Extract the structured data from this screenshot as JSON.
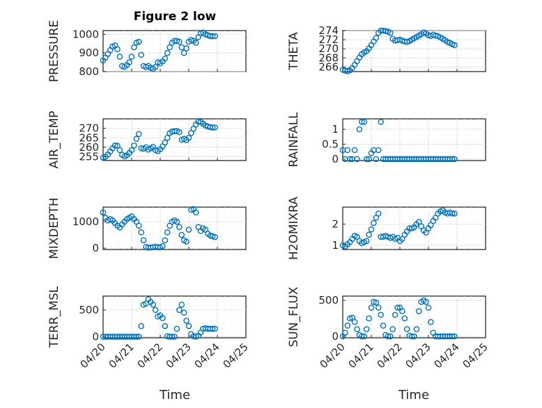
{
  "figure": {
    "title": "Figure 2 low",
    "xlabel": "Time"
  },
  "colors": {
    "marker": "#0072BD",
    "axes": "#262626",
    "grid": "#dfdfdf"
  },
  "chart_data": [
    {
      "type": "scatter",
      "panel": "PRESSURE",
      "ylabel": "PRESSURE",
      "ylim": [
        800,
        1020
      ],
      "yticks": [
        "800",
        "900",
        "1000"
      ],
      "ytick_values": [
        800,
        900,
        1000
      ],
      "x": [
        "04/20 00:00",
        "04/20 02:00",
        "04/20 04:00",
        "04/20 06:00",
        "04/20 08:00",
        "04/20 10:00",
        "04/20 12:00",
        "04/20 14:00",
        "04/20 16:00",
        "04/20 18:00",
        "04/20 20:00",
        "04/20 22:00",
        "04/21 00:00",
        "04/21 02:00",
        "04/21 04:00",
        "04/21 06:00",
        "04/21 08:00",
        "04/21 10:00",
        "04/21 12:00",
        "04/21 14:00",
        "04/21 16:00",
        "04/21 18:00",
        "04/21 20:00",
        "04/21 22:00",
        "04/22 00:00",
        "04/22 02:00",
        "04/22 04:00",
        "04/22 06:00",
        "04/22 08:00",
        "04/22 10:00",
        "04/22 12:00",
        "04/22 14:00",
        "04/22 16:00",
        "04/22 18:00",
        "04/22 20:00",
        "04/22 22:00",
        "04/23 00:00",
        "04/23 02:00",
        "04/23 04:00",
        "04/23 06:00",
        "04/23 08:00",
        "04/23 10:00",
        "04/23 12:00",
        "04/23 14:00",
        "04/23 16:00",
        "04/23 18:00",
        "04/23 20:00",
        "04/23 22:00"
      ],
      "values": [
        860,
        875,
        895,
        915,
        935,
        940,
        920,
        880,
        830,
        825,
        835,
        850,
        880,
        930,
        955,
        960,
        890,
        830,
        825,
        830,
        820,
        815,
        825,
        850,
        845,
        855,
        870,
        900,
        930,
        955,
        965,
        965,
        960,
        930,
        900,
        925,
        960,
        970,
        965,
        955,
        985,
        1005,
        1010,
        1000,
        995,
        990,
        990,
        990
      ]
    },
    {
      "type": "scatter",
      "panel": "THETA",
      "ylabel": "THETA",
      "ylim": [
        265,
        274
      ],
      "yticks": [
        "266",
        "268",
        "270",
        "272",
        "274"
      ],
      "ytick_values": [
        266,
        268,
        270,
        272,
        274
      ],
      "x": [
        "04/20 00:00",
        "04/20 02:00",
        "04/20 04:00",
        "04/20 06:00",
        "04/20 08:00",
        "04/20 10:00",
        "04/20 12:00",
        "04/20 14:00",
        "04/20 16:00",
        "04/20 18:00",
        "04/20 20:00",
        "04/20 22:00",
        "04/21 00:00",
        "04/21 02:00",
        "04/21 04:00",
        "04/21 06:00",
        "04/21 08:00",
        "04/21 10:00",
        "04/21 12:00",
        "04/21 14:00",
        "04/21 16:00",
        "04/21 18:00",
        "04/21 20:00",
        "04/21 22:00",
        "04/22 00:00",
        "04/22 02:00",
        "04/22 04:00",
        "04/22 06:00",
        "04/22 08:00",
        "04/22 10:00",
        "04/22 12:00",
        "04/22 14:00",
        "04/22 16:00",
        "04/22 18:00",
        "04/22 20:00",
        "04/22 22:00",
        "04/23 00:00",
        "04/23 02:00",
        "04/23 04:00",
        "04/23 06:00",
        "04/23 08:00",
        "04/23 10:00",
        "04/23 12:00",
        "04/23 14:00",
        "04/23 16:00",
        "04/23 18:00",
        "04/23 20:00",
        "04/23 22:00"
      ],
      "values": [
        265.4,
        265.2,
        265.1,
        265.3,
        265.8,
        266.5,
        267.3,
        268.1,
        268.8,
        269.2,
        269.5,
        270.1,
        270.8,
        271.6,
        272.4,
        273.5,
        274.0,
        274.0,
        273.9,
        273.8,
        273.5,
        272.2,
        271.8,
        271.9,
        272.0,
        271.8,
        271.6,
        271.5,
        271.7,
        272.0,
        272.3,
        272.6,
        272.9,
        273.2,
        273.6,
        273.4,
        273.0,
        272.8,
        273.1,
        272.9,
        272.8,
        272.5,
        272.2,
        271.9,
        271.5,
        271.3,
        271.0,
        270.8
      ]
    },
    {
      "type": "scatter",
      "panel": "AIR_TEMP",
      "ylabel": "AIR_TEMP",
      "ylim": [
        253,
        275
      ],
      "yticks": [
        "255",
        "260",
        "265",
        "270"
      ],
      "ytick_values": [
        255,
        260,
        265,
        270
      ],
      "x": [
        "04/20 00:00",
        "04/20 02:00",
        "04/20 04:00",
        "04/20 06:00",
        "04/20 08:00",
        "04/20 10:00",
        "04/20 12:00",
        "04/20 14:00",
        "04/20 16:00",
        "04/20 18:00",
        "04/20 20:00",
        "04/20 22:00",
        "04/21 00:00",
        "04/21 02:00",
        "04/21 04:00",
        "04/21 06:00",
        "04/21 08:00",
        "04/21 10:00",
        "04/21 12:00",
        "04/21 14:00",
        "04/21 16:00",
        "04/21 18:00",
        "04/21 20:00",
        "04/21 22:00",
        "04/22 00:00",
        "04/22 02:00",
        "04/22 04:00",
        "04/22 06:00",
        "04/22 08:00",
        "04/22 10:00",
        "04/22 12:00",
        "04/22 14:00",
        "04/22 16:00",
        "04/22 18:00",
        "04/22 20:00",
        "04/22 22:00",
        "04/23 00:00",
        "04/23 02:00",
        "04/23 04:00",
        "04/23 06:00",
        "04/23 08:00",
        "04/23 10:00",
        "04/23 12:00",
        "04/23 14:00",
        "04/23 16:00",
        "04/23 18:00",
        "04/23 20:00",
        "04/23 22:00"
      ],
      "values": [
        254.5,
        255.0,
        256.2,
        257.8,
        259.5,
        261.0,
        260.8,
        258.5,
        256.0,
        255.2,
        255.8,
        257.0,
        258.5,
        261.0,
        264.5,
        267.0,
        259.5,
        259.2,
        260.0,
        258.8,
        259.5,
        260.2,
        258.5,
        258.0,
        259.0,
        260.5,
        262.5,
        265.0,
        267.5,
        268.3,
        268.5,
        268.6,
        268.0,
        264.0,
        264.5,
        263.8,
        265.0,
        267.5,
        269.8,
        272.0,
        273.5,
        273.4,
        272.5,
        271.5,
        271.0,
        270.6,
        270.4,
        270.5
      ]
    },
    {
      "type": "scatter",
      "panel": "RAINFALL",
      "ylabel": "RAINFALL",
      "ylim": [
        -0.05,
        1.35
      ],
      "yticks": [
        "0",
        "0.5",
        "1"
      ],
      "ytick_values": [
        0,
        0.5,
        1
      ],
      "x": [
        "04/20 00:00",
        "04/20 02:00",
        "04/20 04:00",
        "04/20 06:00",
        "04/20 08:00",
        "04/20 10:00",
        "04/20 12:00",
        "04/20 14:00",
        "04/20 16:00",
        "04/20 18:00",
        "04/20 20:00",
        "04/20 22:00",
        "04/21 00:00",
        "04/21 02:00",
        "04/21 04:00",
        "04/21 06:00",
        "04/21 08:00",
        "04/21 10:00",
        "04/21 12:00",
        "04/21 14:00",
        "04/21 16:00",
        "04/21 18:00",
        "04/21 20:00",
        "04/21 22:00",
        "04/22 00:00",
        "04/22 02:00",
        "04/22 04:00",
        "04/22 06:00",
        "04/22 08:00",
        "04/22 10:00",
        "04/22 12:00",
        "04/22 14:00",
        "04/22 16:00",
        "04/22 18:00",
        "04/22 20:00",
        "04/22 22:00",
        "04/23 00:00",
        "04/23 02:00",
        "04/23 04:00",
        "04/23 06:00",
        "04/23 08:00",
        "04/23 10:00",
        "04/23 12:00",
        "04/23 14:00",
        "04/23 16:00",
        "04/23 18:00",
        "04/23 20:00",
        "04/23 22:00"
      ],
      "values": [
        0.3,
        0.0,
        0.3,
        0.0,
        0.0,
        0.3,
        0.0,
        1.0,
        1.25,
        1.25,
        0.0,
        0.0,
        0.2,
        0.3,
        0.0,
        0.3,
        1.25,
        0.0,
        0.0,
        0.0,
        0.0,
        0.0,
        0.0,
        0.0,
        0.0,
        0.0,
        0.0,
        0.0,
        0.0,
        0.0,
        0.0,
        0.0,
        0.0,
        0.0,
        0.0,
        0.0,
        0.0,
        0.0,
        0.0,
        0.0,
        0.0,
        0.0,
        0.0,
        0.0,
        0.0,
        0.0,
        0.0,
        0.0
      ]
    },
    {
      "type": "scatter",
      "panel": "MIXDEPTH",
      "ylabel": "MIXDEPTH",
      "ylim": [
        -50,
        1550
      ],
      "yticks": [
        "0",
        "1000"
      ],
      "ytick_values": [
        0,
        1000
      ],
      "x": [
        "04/20 00:00",
        "04/20 02:00",
        "04/20 04:00",
        "04/20 06:00",
        "04/20 08:00",
        "04/20 10:00",
        "04/20 12:00",
        "04/20 14:00",
        "04/20 16:00",
        "04/20 18:00",
        "04/20 20:00",
        "04/20 22:00",
        "04/21 00:00",
        "04/21 02:00",
        "04/21 04:00",
        "04/21 06:00",
        "04/21 08:00",
        "04/21 10:00",
        "04/21 12:00",
        "04/21 14:00",
        "04/21 16:00",
        "04/21 18:00",
        "04/21 20:00",
        "04/21 22:00",
        "04/22 00:00",
        "04/22 02:00",
        "04/22 04:00",
        "04/22 06:00",
        "04/22 08:00",
        "04/22 10:00",
        "04/22 12:00",
        "04/22 14:00",
        "04/22 16:00",
        "04/22 18:00",
        "04/22 20:00",
        "04/22 22:00",
        "04/23 00:00",
        "04/23 02:00",
        "04/23 04:00",
        "04/23 06:00",
        "04/23 08:00",
        "04/23 10:00",
        "04/23 12:00",
        "04/23 14:00",
        "04/23 16:00",
        "04/23 18:00",
        "04/23 20:00",
        "04/23 22:00"
      ],
      "values": [
        1350,
        1150,
        1050,
        1100,
        1050,
        950,
        850,
        780,
        900,
        1000,
        1100,
        1150,
        1200,
        1100,
        1000,
        850,
        600,
        300,
        50,
        20,
        30,
        40,
        60,
        40,
        30,
        80,
        300,
        600,
        850,
        1000,
        1050,
        1000,
        800,
        500,
        300,
        250,
        700,
        1450,
        1480,
        1350,
        800,
        650,
        750,
        700,
        550,
        480,
        450,
        420
      ]
    },
    {
      "type": "scatter",
      "panel": "H2OMIXRA",
      "ylabel": "H2OMIXRA",
      "ylim": [
        0.8,
        2.8
      ],
      "yticks": [
        "1",
        "2"
      ],
      "ytick_values": [
        1,
        2
      ],
      "x": [
        "04/20 00:00",
        "04/20 02:00",
        "04/20 04:00",
        "04/20 06:00",
        "04/20 08:00",
        "04/20 10:00",
        "04/20 12:00",
        "04/20 14:00",
        "04/20 16:00",
        "04/20 18:00",
        "04/20 20:00",
        "04/20 22:00",
        "04/21 00:00",
        "04/21 02:00",
        "04/21 04:00",
        "04/21 06:00",
        "04/21 08:00",
        "04/21 10:00",
        "04/21 12:00",
        "04/21 14:00",
        "04/21 16:00",
        "04/21 18:00",
        "04/21 20:00",
        "04/21 22:00",
        "04/22 00:00",
        "04/22 02:00",
        "04/22 04:00",
        "04/22 06:00",
        "04/22 08:00",
        "04/22 10:00",
        "04/22 12:00",
        "04/22 14:00",
        "04/22 16:00",
        "04/22 18:00",
        "04/22 20:00",
        "04/22 22:00",
        "04/23 00:00",
        "04/23 02:00",
        "04/23 04:00",
        "04/23 06:00",
        "04/23 08:00",
        "04/23 10:00",
        "04/23 12:00",
        "04/23 14:00",
        "04/23 16:00",
        "04/23 18:00",
        "04/23 20:00",
        "04/23 22:00"
      ],
      "values": [
        1.0,
        0.95,
        1.05,
        1.15,
        1.3,
        1.45,
        1.4,
        1.2,
        1.1,
        1.15,
        1.2,
        1.5,
        1.75,
        2.05,
        2.3,
        2.5,
        1.4,
        1.4,
        1.45,
        1.4,
        1.35,
        1.4,
        1.3,
        1.35,
        1.2,
        1.3,
        1.5,
        1.65,
        1.8,
        1.8,
        1.85,
        2.0,
        2.1,
        1.9,
        1.7,
        1.6,
        1.8,
        1.95,
        2.15,
        2.3,
        2.5,
        2.6,
        2.65,
        2.55,
        2.5,
        2.55,
        2.5,
        2.5
      ]
    },
    {
      "type": "scatter",
      "panel": "TERR_MSL",
      "ylabel": "TERR_MSL",
      "ylim": [
        -20,
        760
      ],
      "yticks": [
        "0",
        "500"
      ],
      "ytick_values": [
        0,
        500
      ],
      "x": [
        "04/20 00:00",
        "04/20 02:00",
        "04/20 04:00",
        "04/20 06:00",
        "04/20 08:00",
        "04/20 10:00",
        "04/20 12:00",
        "04/20 14:00",
        "04/20 16:00",
        "04/20 18:00",
        "04/20 20:00",
        "04/20 22:00",
        "04/21 00:00",
        "04/21 02:00",
        "04/21 04:00",
        "04/21 06:00",
        "04/21 08:00",
        "04/21 10:00",
        "04/21 12:00",
        "04/21 14:00",
        "04/21 16:00",
        "04/21 18:00",
        "04/21 20:00",
        "04/21 22:00",
        "04/22 00:00",
        "04/22 02:00",
        "04/22 04:00",
        "04/22 06:00",
        "04/22 08:00",
        "04/22 10:00",
        "04/22 12:00",
        "04/22 14:00",
        "04/22 16:00",
        "04/22 18:00",
        "04/22 20:00",
        "04/22 22:00",
        "04/23 00:00",
        "04/23 02:00",
        "04/23 04:00",
        "04/23 06:00",
        "04/23 08:00",
        "04/23 10:00",
        "04/23 12:00",
        "04/23 14:00",
        "04/23 16:00",
        "04/23 18:00",
        "04/23 20:00",
        "04/23 22:00"
      ],
      "values": [
        0,
        0,
        0,
        0,
        0,
        0,
        0,
        0,
        0,
        0,
        0,
        0,
        0,
        0,
        0,
        0,
        200,
        600,
        620,
        700,
        650,
        600,
        500,
        380,
        400,
        350,
        200,
        10,
        0,
        0,
        0,
        150,
        500,
        600,
        450,
        300,
        200,
        50,
        10,
        0,
        20,
        80,
        150,
        160,
        150,
        150,
        150,
        150
      ]
    },
    {
      "type": "scatter",
      "panel": "SUN_FLUX",
      "ylabel": "SUN_FLUX",
      "ylim": [
        -20,
        560
      ],
      "yticks": [
        "0",
        "500"
      ],
      "ytick_values": [
        0,
        500
      ],
      "x": [
        "04/20 00:00",
        "04/20 02:00",
        "04/20 04:00",
        "04/20 06:00",
        "04/20 08:00",
        "04/20 10:00",
        "04/20 12:00",
        "04/20 14:00",
        "04/20 16:00",
        "04/20 18:00",
        "04/20 20:00",
        "04/20 22:00",
        "04/21 00:00",
        "04/21 02:00",
        "04/21 04:00",
        "04/21 06:00",
        "04/21 08:00",
        "04/21 10:00",
        "04/21 12:00",
        "04/21 14:00",
        "04/21 16:00",
        "04/21 18:00",
        "04/21 20:00",
        "04/21 22:00",
        "04/22 00:00",
        "04/22 02:00",
        "04/22 04:00",
        "04/22 06:00",
        "04/22 08:00",
        "04/22 10:00",
        "04/22 12:00",
        "04/22 14:00",
        "04/22 16:00",
        "04/22 18:00",
        "04/22 20:00",
        "04/22 22:00",
        "04/23 00:00",
        "04/23 02:00",
        "04/23 04:00",
        "04/23 06:00",
        "04/23 08:00",
        "04/23 10:00",
        "04/23 12:00",
        "04/23 14:00",
        "04/23 16:00",
        "04/23 18:00",
        "04/23 20:00",
        "04/23 22:00"
      ],
      "values": [
        0,
        50,
        150,
        250,
        260,
        200,
        100,
        20,
        0,
        0,
        100,
        250,
        400,
        480,
        470,
        400,
        300,
        150,
        20,
        0,
        0,
        100,
        300,
        400,
        400,
        350,
        250,
        100,
        10,
        0,
        0,
        100,
        350,
        480,
        500,
        480,
        400,
        200,
        50,
        0,
        0,
        0,
        0,
        0,
        0,
        0,
        0,
        0
      ]
    }
  ],
  "x_axis": {
    "tick_labels": [
      "04/20",
      "04/21",
      "04/22",
      "04/23",
      "04/24",
      "04/25"
    ],
    "range": [
      "04/20",
      "04/25"
    ]
  }
}
